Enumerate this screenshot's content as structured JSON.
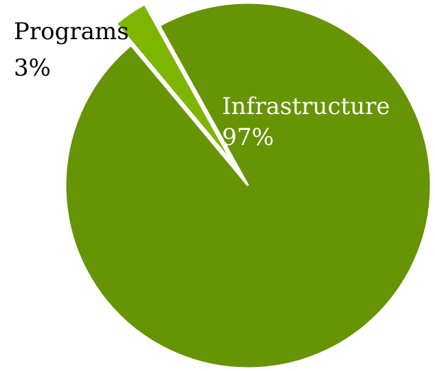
{
  "chart_data": {
    "type": "pie",
    "slices": [
      {
        "name": "Infrastructure",
        "value": 97,
        "label": "97%",
        "color": "#669404"
      },
      {
        "name": "Programs",
        "value": 3,
        "label": "3%",
        "color": "#7db501"
      }
    ],
    "exploded_slice": "Programs",
    "legend": "none",
    "label_text_colors": {
      "Infrastructure": "#ffffff",
      "Programs": "#000000"
    }
  }
}
